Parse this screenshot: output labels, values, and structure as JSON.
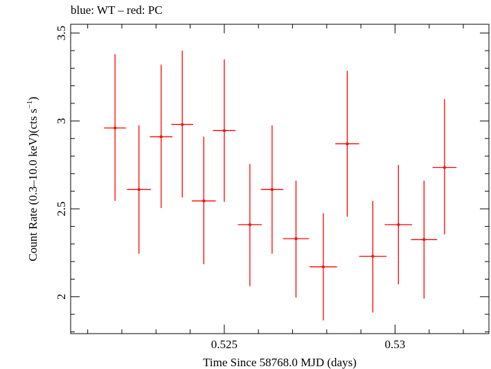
{
  "chart_data": {
    "type": "scatter",
    "title": "blue: WT – red: PC",
    "xlabel": "Time Since 58768.0 MJD (days)",
    "ylabel_main": "Count Rate (0.3–10.0 keV)(cts s",
    "ylabel_sup": "−1",
    "ylabel_end": ")",
    "xlim": [
      0.5205,
      0.53275
    ],
    "ylim": [
      1.79,
      3.55
    ],
    "x_ticks": [
      {
        "value": 0.525,
        "label": "0.525"
      },
      {
        "value": 0.53,
        "label": "0.53"
      }
    ],
    "y_ticks": [
      {
        "value": 2,
        "label": "2"
      },
      {
        "value": 2.5,
        "label": "2.5"
      },
      {
        "value": 3,
        "label": "3"
      },
      {
        "value": 3.5,
        "label": "3.5"
      }
    ],
    "grid": false,
    "series": [
      {
        "color": "#ff0000",
        "points": [
          {
            "x": 0.5218,
            "xerr": 0.00032,
            "y": 2.96,
            "ylo": 2.545,
            "yhi": 3.38
          },
          {
            "x": 0.5225,
            "xerr": 0.00035,
            "y": 2.61,
            "ylo": 2.245,
            "yhi": 2.975
          },
          {
            "x": 0.52315,
            "xerr": 0.00033,
            "y": 2.91,
            "ylo": 2.505,
            "yhi": 3.32
          },
          {
            "x": 0.52377,
            "xerr": 0.00032,
            "y": 2.98,
            "ylo": 2.565,
            "yhi": 3.4
          },
          {
            "x": 0.5244,
            "xerr": 0.00035,
            "y": 2.545,
            "ylo": 2.185,
            "yhi": 2.91
          },
          {
            "x": 0.525,
            "xerr": 0.00033,
            "y": 2.945,
            "ylo": 2.54,
            "yhi": 3.35
          },
          {
            "x": 0.52575,
            "xerr": 0.00035,
            "y": 2.41,
            "ylo": 2.06,
            "yhi": 2.755
          },
          {
            "x": 0.5264,
            "xerr": 0.00033,
            "y": 2.61,
            "ylo": 2.245,
            "yhi": 2.975
          },
          {
            "x": 0.5271,
            "xerr": 0.00038,
            "y": 2.33,
            "ylo": 1.995,
            "yhi": 2.66
          },
          {
            "x": 0.5279,
            "xerr": 0.0004,
            "y": 2.17,
            "ylo": 1.865,
            "yhi": 2.475
          },
          {
            "x": 0.5286,
            "xerr": 0.00035,
            "y": 2.87,
            "ylo": 2.455,
            "yhi": 3.285
          },
          {
            "x": 0.52935,
            "xerr": 0.0004,
            "y": 2.23,
            "ylo": 1.91,
            "yhi": 2.545
          },
          {
            "x": 0.5301,
            "xerr": 0.0004,
            "y": 2.41,
            "ylo": 2.07,
            "yhi": 2.75
          },
          {
            "x": 0.53085,
            "xerr": 0.00038,
            "y": 2.325,
            "ylo": 1.99,
            "yhi": 2.66
          },
          {
            "x": 0.53145,
            "xerr": 0.00035,
            "y": 2.735,
            "ylo": 2.355,
            "yhi": 3.125
          }
        ]
      }
    ]
  }
}
